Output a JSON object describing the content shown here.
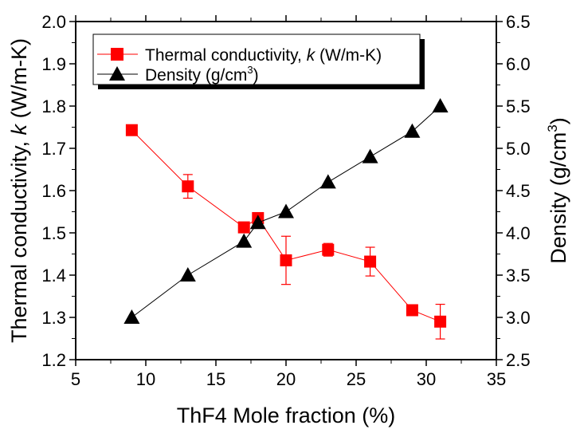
{
  "chart_data": {
    "type": "line",
    "xlabel": "ThF4 Mole fraction (%)",
    "ylabel_left": "Thermal conductivity, k (W/m-K)",
    "ylabel_right": "Density (g/cm3)",
    "xlim": [
      5,
      35
    ],
    "ylim_left": [
      1.2,
      2.0
    ],
    "ylim_right": [
      2.5,
      6.5
    ],
    "xticks": [
      "5",
      "10",
      "15",
      "20",
      "25",
      "30",
      "35"
    ],
    "yticks_left": [
      "1.2",
      "1.3",
      "1.4",
      "1.5",
      "1.6",
      "1.7",
      "1.8",
      "1.9",
      "2.0"
    ],
    "yticks_right": [
      "2.5",
      "3.0",
      "3.5",
      "4.0",
      "4.5",
      "5.0",
      "5.5",
      "6.0",
      "6.5"
    ],
    "grid": false,
    "legend_position": "top-left",
    "series": [
      {
        "name": "Thermal conductivity, k (W/m-K)",
        "axis": "left",
        "marker": "square",
        "color": "#ff0000",
        "x": [
          9,
          13,
          17,
          18,
          20,
          23,
          26,
          29,
          31
        ],
        "y": [
          1.743,
          1.61,
          1.513,
          1.535,
          1.435,
          1.46,
          1.432,
          1.317,
          1.29
        ],
        "error": [
          0.008,
          0.028,
          0.008,
          0.008,
          0.057,
          0.015,
          0.034,
          0.006,
          0.041
        ]
      },
      {
        "name": "Density (g/cm3)",
        "axis": "right",
        "marker": "triangle",
        "color": "#000000",
        "x": [
          9,
          13,
          17,
          18,
          20,
          23,
          26,
          29,
          31
        ],
        "y": [
          3.0,
          3.5,
          3.9,
          4.12,
          4.25,
          4.6,
          4.9,
          5.2,
          5.5
        ]
      }
    ],
    "legend": {
      "k_main": "Thermal conductivity, ",
      "k_italic": "k",
      "k_unit": " (W/m-K)",
      "density_main": "Density (g/cm",
      "density_sup": "3",
      "density_close": ")"
    },
    "axis_label_parts": {
      "left_main": "Thermal conductivity, ",
      "left_italic": "k",
      "left_unit": " (W/m-K)",
      "right_main": "Density (g/cm",
      "right_sup": "3",
      "right_close": ")"
    }
  }
}
